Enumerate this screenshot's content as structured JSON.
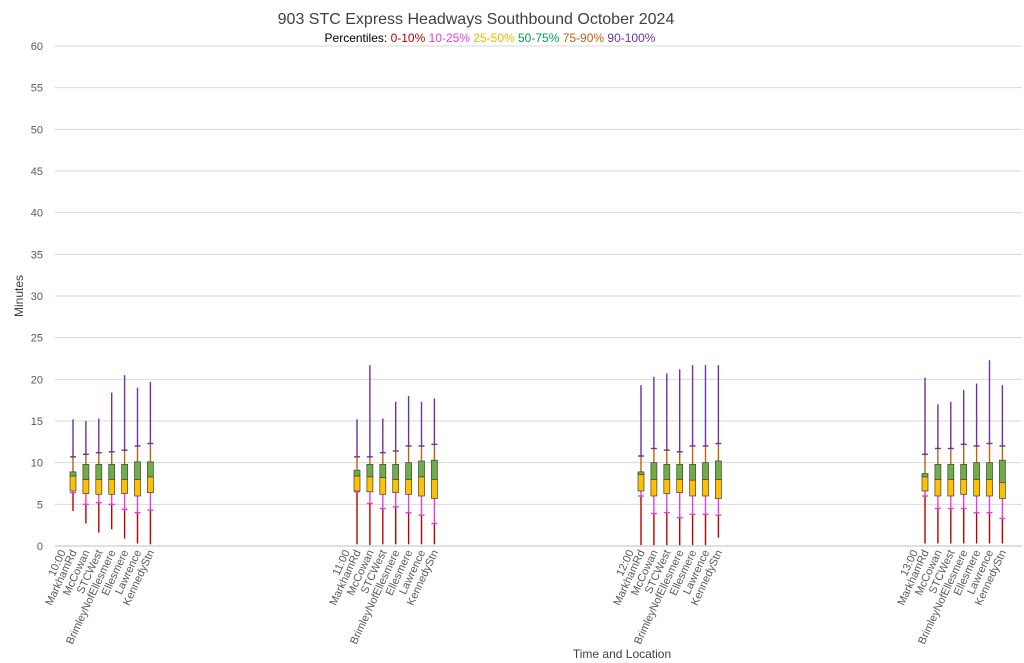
{
  "chart_data": {
    "type": "box",
    "title": "903 STC Express Headways Southbound October 2024",
    "legend": {
      "label": "Percentiles:",
      "items": [
        {
          "name": "0-10%",
          "color": "#C00000"
        },
        {
          "name": "10-25%",
          "color": "#E040E0"
        },
        {
          "name": "25-50%",
          "color": "#F0B800"
        },
        {
          "name": "50-75%",
          "color": "#00A050"
        },
        {
          "name": "75-90%",
          "color": "#C06010"
        },
        {
          "name": "90-100%",
          "color": "#7030A0"
        }
      ]
    },
    "xlabel": "Time and Location",
    "ylabel": "Minutes",
    "ylim": [
      0,
      60
    ],
    "yticks": [
      0,
      5,
      10,
      15,
      20,
      25,
      30,
      35,
      40,
      45,
      50,
      55,
      60
    ],
    "grid": true,
    "box_colors": {
      "lower": "#FFC000",
      "upper": "#70AD47",
      "border": "#404040"
    },
    "groups": [
      {
        "time": "10:00",
        "stops": [
          {
            "name": "MarkhamRd",
            "p0": 4.2,
            "p10": 6.4,
            "p25": 6.6,
            "p50": 8.4,
            "p75": 8.9,
            "p90": 10.7,
            "p100": 15.2
          },
          {
            "name": "McCowan",
            "p0": 2.7,
            "p10": 5.0,
            "p25": 6.3,
            "p50": 8.0,
            "p75": 9.8,
            "p90": 11.0,
            "p100": 15.0
          },
          {
            "name": "STCWest",
            "p0": 1.6,
            "p10": 5.2,
            "p25": 6.2,
            "p50": 8.0,
            "p75": 9.8,
            "p90": 11.2,
            "p100": 15.3
          },
          {
            "name": "BrimleyNofEllesmere",
            "p0": 2.0,
            "p10": 5.0,
            "p25": 6.2,
            "p50": 8.0,
            "p75": 9.8,
            "p90": 11.3,
            "p100": 18.4
          },
          {
            "name": "Ellesmere",
            "p0": 0.9,
            "p10": 4.4,
            "p25": 6.3,
            "p50": 8.0,
            "p75": 9.8,
            "p90": 11.5,
            "p100": 20.5
          },
          {
            "name": "Lawrence",
            "p0": 0.3,
            "p10": 4.0,
            "p25": 6.0,
            "p50": 8.0,
            "p75": 10.1,
            "p90": 12.0,
            "p100": 19.0
          },
          {
            "name": "KennedyStn",
            "p0": 0.2,
            "p10": 4.3,
            "p25": 6.4,
            "p50": 8.3,
            "p75": 10.1,
            "p90": 12.3,
            "p100": 19.7
          }
        ]
      },
      {
        "time": "11:00",
        "stops": [
          {
            "name": "MarkhamRd",
            "p0": 0.2,
            "p10": 6.5,
            "p25": 6.6,
            "p50": 8.4,
            "p75": 9.1,
            "p90": 10.7,
            "p100": 15.2
          },
          {
            "name": "McCowan",
            "p0": 0.1,
            "p10": 5.1,
            "p25": 6.5,
            "p50": 8.3,
            "p75": 9.8,
            "p90": 10.7,
            "p100": 21.7
          },
          {
            "name": "STCWest",
            "p0": 0.2,
            "p10": 4.5,
            "p25": 6.2,
            "p50": 8.2,
            "p75": 9.8,
            "p90": 11.2,
            "p100": 15.3
          },
          {
            "name": "BrimleyNofEllesmere",
            "p0": 0.2,
            "p10": 4.7,
            "p25": 6.4,
            "p50": 8.0,
            "p75": 9.8,
            "p90": 11.4,
            "p100": 17.3
          },
          {
            "name": "Ellesmere",
            "p0": 0.2,
            "p10": 4.0,
            "p25": 6.2,
            "p50": 8.0,
            "p75": 10.0,
            "p90": 12.0,
            "p100": 18.0
          },
          {
            "name": "Lawrence",
            "p0": 0.2,
            "p10": 3.7,
            "p25": 6.0,
            "p50": 8.3,
            "p75": 10.2,
            "p90": 12.0,
            "p100": 17.3
          },
          {
            "name": "KennedyStn",
            "p0": 0.2,
            "p10": 2.7,
            "p25": 5.7,
            "p50": 8.0,
            "p75": 10.3,
            "p90": 12.2,
            "p100": 17.7
          }
        ]
      },
      {
        "time": "12:00",
        "stops": [
          {
            "name": "MarkhamRd",
            "p0": 0.1,
            "p10": 6.0,
            "p25": 6.6,
            "p50": 8.6,
            "p75": 8.9,
            "p90": 10.8,
            "p100": 19.3
          },
          {
            "name": "McCowan",
            "p0": 0.1,
            "p10": 3.9,
            "p25": 6.0,
            "p50": 8.0,
            "p75": 10.0,
            "p90": 11.7,
            "p100": 20.3
          },
          {
            "name": "STCWest",
            "p0": 0.1,
            "p10": 4.0,
            "p25": 6.3,
            "p50": 8.0,
            "p75": 9.8,
            "p90": 11.5,
            "p100": 20.7
          },
          {
            "name": "BrimleyNofEllesmere",
            "p0": 0.1,
            "p10": 3.4,
            "p25": 6.4,
            "p50": 8.0,
            "p75": 9.8,
            "p90": 11.3,
            "p100": 21.2
          },
          {
            "name": "Ellesmere",
            "p0": 0.1,
            "p10": 3.8,
            "p25": 6.0,
            "p50": 7.9,
            "p75": 9.8,
            "p90": 12.0,
            "p100": 21.7
          },
          {
            "name": "Lawrence",
            "p0": 0.1,
            "p10": 3.8,
            "p25": 6.0,
            "p50": 8.0,
            "p75": 10.0,
            "p90": 12.0,
            "p100": 21.7
          },
          {
            "name": "KennedyStn",
            "p0": 1.0,
            "p10": 3.7,
            "p25": 5.7,
            "p50": 8.0,
            "p75": 10.2,
            "p90": 12.3,
            "p100": 21.7
          }
        ]
      },
      {
        "time": "13:00",
        "stops": [
          {
            "name": "MarkhamRd",
            "p0": 0.3,
            "p10": 6.0,
            "p25": 6.6,
            "p50": 8.3,
            "p75": 8.7,
            "p90": 11.0,
            "p100": 20.2
          },
          {
            "name": "McCowan",
            "p0": 0.3,
            "p10": 4.5,
            "p25": 6.0,
            "p50": 8.0,
            "p75": 9.8,
            "p90": 11.7,
            "p100": 17.0
          },
          {
            "name": "STCWest",
            "p0": 0.3,
            "p10": 4.5,
            "p25": 6.0,
            "p50": 8.0,
            "p75": 9.8,
            "p90": 11.7,
            "p100": 17.3
          },
          {
            "name": "BrimleyNofEllesmere",
            "p0": 0.3,
            "p10": 4.5,
            "p25": 6.2,
            "p50": 8.0,
            "p75": 9.8,
            "p90": 12.2,
            "p100": 18.7
          },
          {
            "name": "Ellesmere",
            "p0": 0.3,
            "p10": 4.0,
            "p25": 6.0,
            "p50": 8.0,
            "p75": 10.0,
            "p90": 12.0,
            "p100": 19.5
          },
          {
            "name": "Lawrence",
            "p0": 0.3,
            "p10": 4.0,
            "p25": 6.0,
            "p50": 8.0,
            "p75": 10.0,
            "p90": 12.3,
            "p100": 22.3
          },
          {
            "name": "KennedyStn",
            "p0": 0.3,
            "p10": 3.3,
            "p25": 5.7,
            "p50": 7.6,
            "p75": 10.3,
            "p90": 12.0,
            "p100": 19.3
          }
        ]
      }
    ]
  }
}
